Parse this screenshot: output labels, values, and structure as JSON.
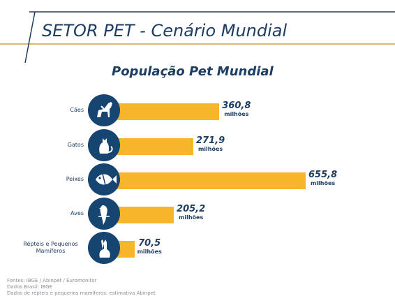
{
  "header": {
    "title": "SETOR PET - Cenário Mundial"
  },
  "chart_data": {
    "type": "bar",
    "title": "População Pet Mundial",
    "unit": "milhões",
    "categories": [
      "Cães",
      "Gatos",
      "Peixes",
      "Aves",
      "Répteis e Pequenos Mamíferos"
    ],
    "values": [
      360.8,
      271.9,
      655.8,
      205.2,
      70.5
    ],
    "value_labels": [
      "360,8",
      "271,9",
      "655,8",
      "205,2",
      "70,5"
    ],
    "icons": [
      "dog-icon",
      "cat-icon",
      "fish-icon",
      "parrot-icon",
      "rabbit-icon"
    ],
    "bar_color": "#f7b52c",
    "icon_bg_color": "#164572",
    "text_color": "#1d3d63"
  },
  "footer": {
    "lines": [
      "Fontes: IBGE  / Abinpet / Euromonitor",
      "Dados Brasil: IBGE",
      "Dados de répteis e pequenos mamíferos: estimativa Abinpet"
    ]
  }
}
